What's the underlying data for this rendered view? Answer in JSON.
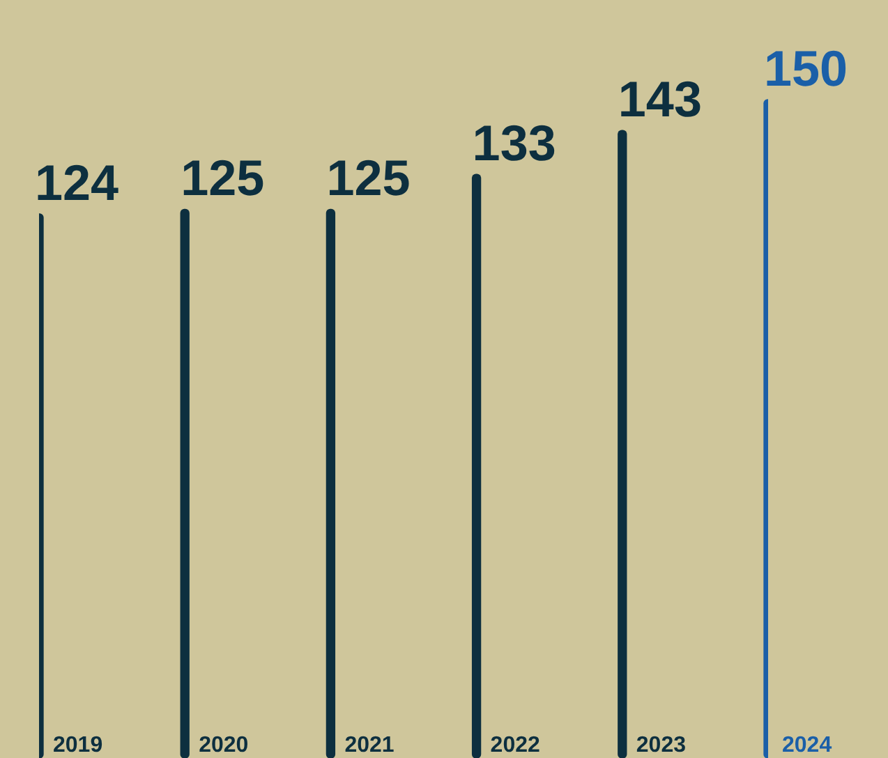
{
  "chart_data": {
    "type": "bar",
    "categories": [
      "2019",
      "2020",
      "2021",
      "2022",
      "2023",
      "2024"
    ],
    "values": [
      124,
      125,
      125,
      133,
      143,
      150
    ],
    "colors": [
      "#0d2f3f",
      "#0d2f3f",
      "#0d2f3f",
      "#0d2f3f",
      "#0d2f3f",
      "#1a5fa8"
    ],
    "tick_labels": "x",
    "legend": false,
    "data_labels": true
  }
}
